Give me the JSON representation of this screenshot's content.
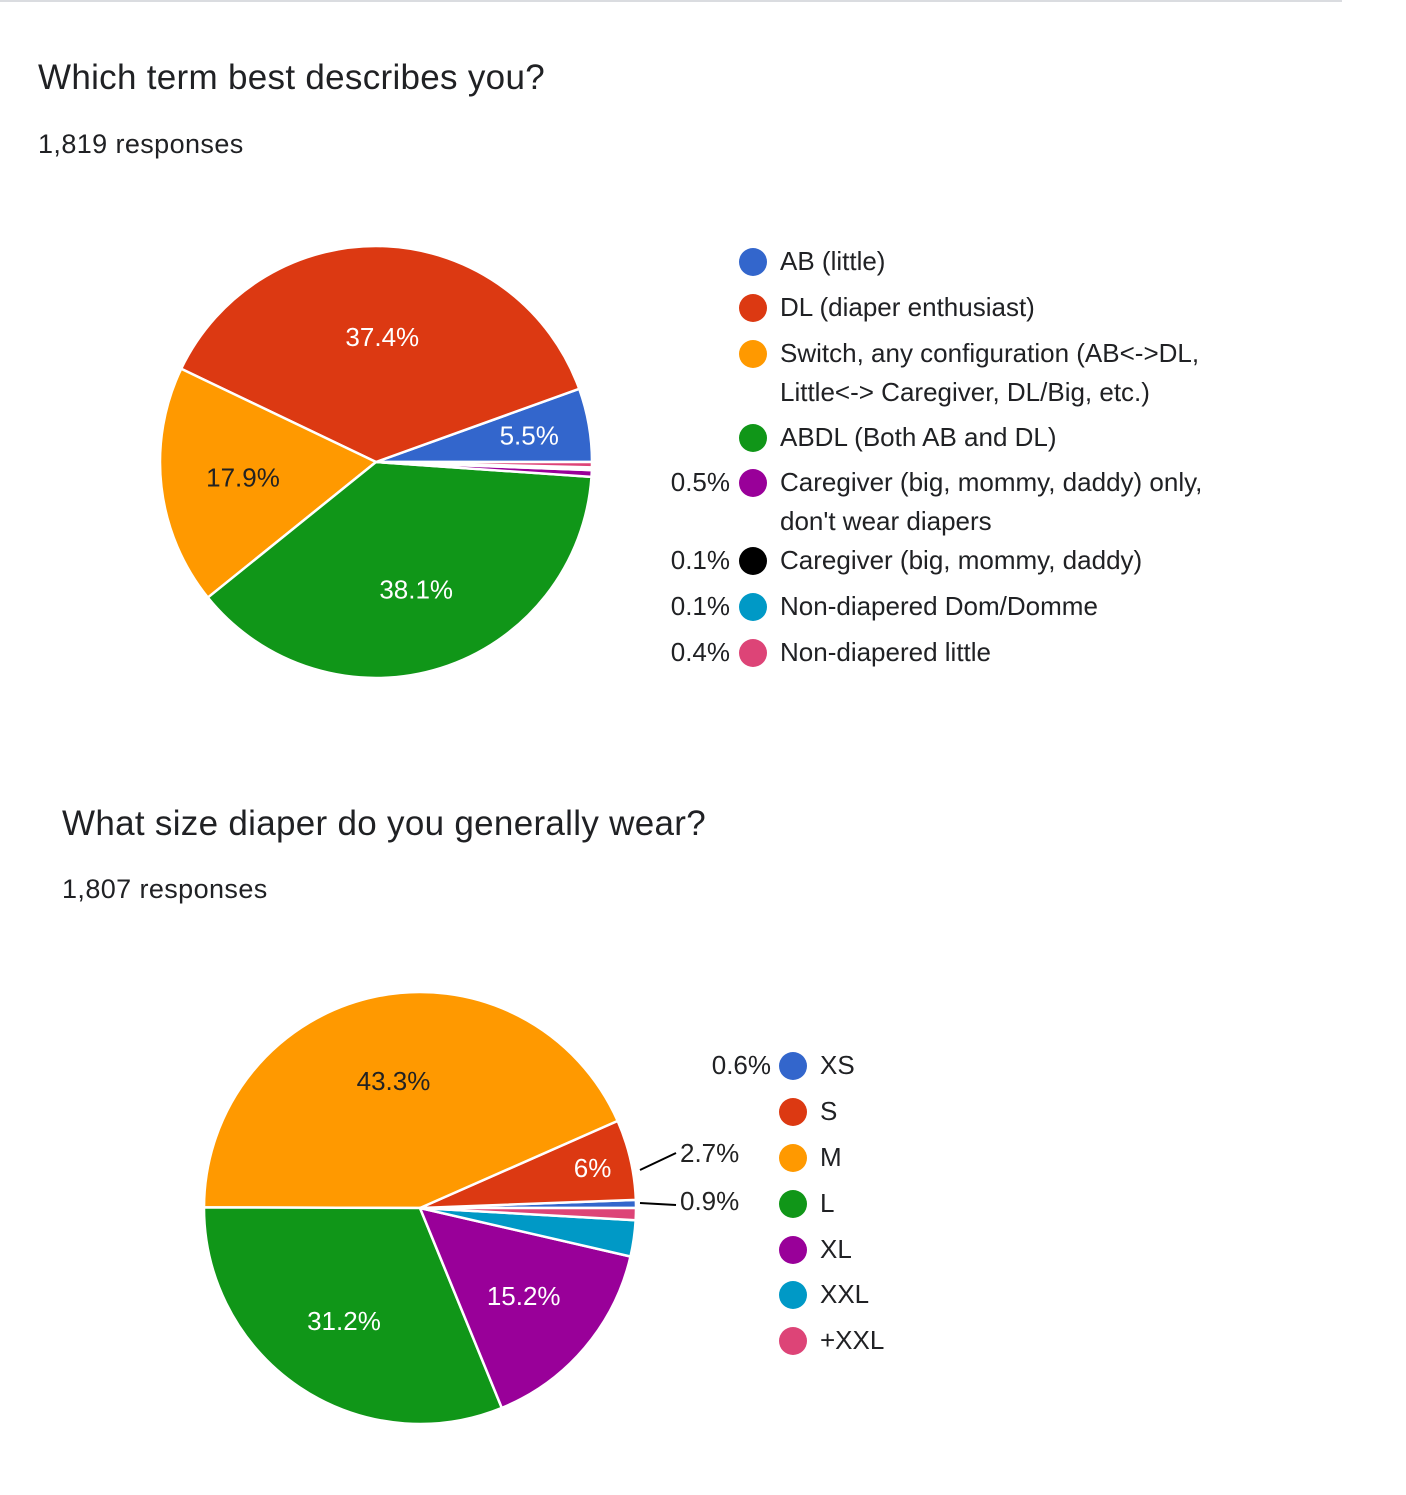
{
  "chart_data": [
    {
      "type": "pie",
      "title": "Which term best describes you?",
      "subtitle": "1,819 responses",
      "legend_position": "right",
      "slices": [
        {
          "label": "AB (little)",
          "value": 5.5,
          "color": "#3366cc",
          "data_label": "5.5%",
          "legend_pct": ""
        },
        {
          "label": "DL (diaper enthusiast)",
          "value": 37.4,
          "color": "#dc3912",
          "data_label": "37.4%",
          "legend_pct": ""
        },
        {
          "label": "Switch, any configuration (AB<->DL, Little<-> Caregiver, DL/Big, etc.)",
          "value": 17.9,
          "color": "#ff9900",
          "data_label": "17.9%",
          "legend_pct": ""
        },
        {
          "label": "ABDL (Both AB and DL)",
          "value": 38.1,
          "color": "#109618",
          "data_label": "38.1%",
          "legend_pct": ""
        },
        {
          "label": "Caregiver (big, mommy, daddy) only, don't wear diapers",
          "value": 0.5,
          "color": "#990099",
          "data_label": "",
          "legend_pct": "0.5%"
        },
        {
          "label": "Caregiver (big, mommy, daddy)",
          "value": 0.1,
          "color": "#000000",
          "data_label": "",
          "legend_pct": "0.1%"
        },
        {
          "label": "Non-diapered Dom/Domme",
          "value": 0.1,
          "color": "#0099c6",
          "data_label": "",
          "legend_pct": "0.1%"
        },
        {
          "label": "Non-diapered little",
          "value": 0.4,
          "color": "#dd4477",
          "data_label": "",
          "legend_pct": "0.4%"
        }
      ]
    },
    {
      "type": "pie",
      "title": "What size diaper do you generally wear?",
      "subtitle": "1,807 responses",
      "legend_position": "right",
      "slices": [
        {
          "label": "XS",
          "value": 0.6,
          "color": "#3366cc",
          "data_label": "",
          "legend_pct": "0.6%"
        },
        {
          "label": "S",
          "value": 6,
          "color": "#dc3912",
          "data_label": "6%",
          "legend_pct": ""
        },
        {
          "label": "M",
          "value": 43.3,
          "color": "#ff9900",
          "data_label": "43.3%",
          "legend_pct": ""
        },
        {
          "label": "L",
          "value": 31.2,
          "color": "#109618",
          "data_label": "31.2%",
          "legend_pct": ""
        },
        {
          "label": "XL",
          "value": 15.2,
          "color": "#990099",
          "data_label": "15.2%",
          "legend_pct": ""
        },
        {
          "label": "XXL",
          "value": 2.7,
          "color": "#0099c6",
          "data_label": "2.7%",
          "legend_pct": ""
        },
        {
          "label": "+XXL",
          "value": 0.9,
          "color": "#dd4477",
          "data_label": "0.9%",
          "legend_pct": ""
        }
      ]
    }
  ]
}
